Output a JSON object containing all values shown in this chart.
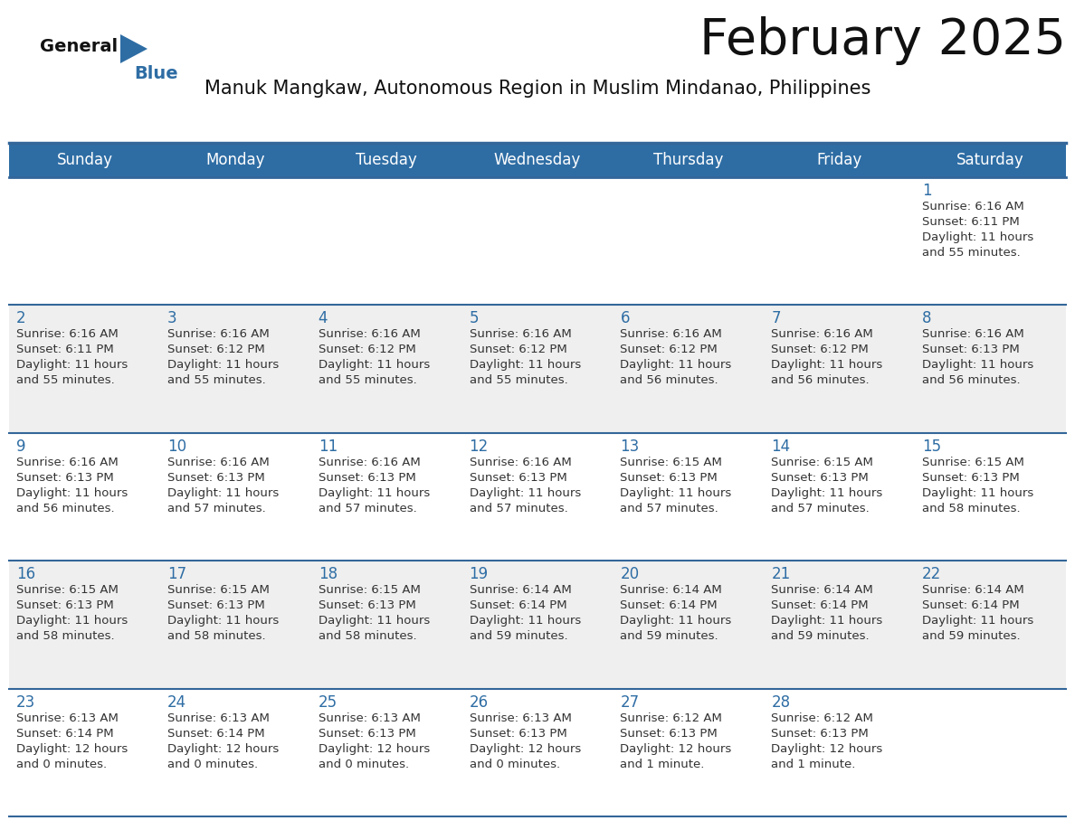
{
  "title": "February 2025",
  "subtitle": "Manuk Mangkaw, Autonomous Region in Muslim Mindanao, Philippines",
  "days_of_week": [
    "Sunday",
    "Monday",
    "Tuesday",
    "Wednesday",
    "Thursday",
    "Friday",
    "Saturday"
  ],
  "header_bg": "#2E6DA4",
  "header_text_color": "#FFFFFF",
  "cell_bg_white": "#FFFFFF",
  "cell_bg_gray": "#EFEFEF",
  "border_color": "#336699",
  "title_color": "#111111",
  "subtitle_color": "#111111",
  "day_num_color": "#2E6DA4",
  "info_color": "#333333",
  "logo_black": "#111111",
  "logo_blue": "#2E6DA4",
  "calendar": [
    [
      null,
      null,
      null,
      null,
      null,
      null,
      1
    ],
    [
      2,
      3,
      4,
      5,
      6,
      7,
      8
    ],
    [
      9,
      10,
      11,
      12,
      13,
      14,
      15
    ],
    [
      16,
      17,
      18,
      19,
      20,
      21,
      22
    ],
    [
      23,
      24,
      25,
      26,
      27,
      28,
      null
    ]
  ],
  "sun_data": {
    "1": {
      "sunrise": "6:16 AM",
      "sunset": "6:11 PM",
      "dl1": "Daylight: 11 hours",
      "dl2": "and 55 minutes."
    },
    "2": {
      "sunrise": "6:16 AM",
      "sunset": "6:11 PM",
      "dl1": "Daylight: 11 hours",
      "dl2": "and 55 minutes."
    },
    "3": {
      "sunrise": "6:16 AM",
      "sunset": "6:12 PM",
      "dl1": "Daylight: 11 hours",
      "dl2": "and 55 minutes."
    },
    "4": {
      "sunrise": "6:16 AM",
      "sunset": "6:12 PM",
      "dl1": "Daylight: 11 hours",
      "dl2": "and 55 minutes."
    },
    "5": {
      "sunrise": "6:16 AM",
      "sunset": "6:12 PM",
      "dl1": "Daylight: 11 hours",
      "dl2": "and 55 minutes."
    },
    "6": {
      "sunrise": "6:16 AM",
      "sunset": "6:12 PM",
      "dl1": "Daylight: 11 hours",
      "dl2": "and 56 minutes."
    },
    "7": {
      "sunrise": "6:16 AM",
      "sunset": "6:12 PM",
      "dl1": "Daylight: 11 hours",
      "dl2": "and 56 minutes."
    },
    "8": {
      "sunrise": "6:16 AM",
      "sunset": "6:13 PM",
      "dl1": "Daylight: 11 hours",
      "dl2": "and 56 minutes."
    },
    "9": {
      "sunrise": "6:16 AM",
      "sunset": "6:13 PM",
      "dl1": "Daylight: 11 hours",
      "dl2": "and 56 minutes."
    },
    "10": {
      "sunrise": "6:16 AM",
      "sunset": "6:13 PM",
      "dl1": "Daylight: 11 hours",
      "dl2": "and 57 minutes."
    },
    "11": {
      "sunrise": "6:16 AM",
      "sunset": "6:13 PM",
      "dl1": "Daylight: 11 hours",
      "dl2": "and 57 minutes."
    },
    "12": {
      "sunrise": "6:16 AM",
      "sunset": "6:13 PM",
      "dl1": "Daylight: 11 hours",
      "dl2": "and 57 minutes."
    },
    "13": {
      "sunrise": "6:15 AM",
      "sunset": "6:13 PM",
      "dl1": "Daylight: 11 hours",
      "dl2": "and 57 minutes."
    },
    "14": {
      "sunrise": "6:15 AM",
      "sunset": "6:13 PM",
      "dl1": "Daylight: 11 hours",
      "dl2": "and 57 minutes."
    },
    "15": {
      "sunrise": "6:15 AM",
      "sunset": "6:13 PM",
      "dl1": "Daylight: 11 hours",
      "dl2": "and 58 minutes."
    },
    "16": {
      "sunrise": "6:15 AM",
      "sunset": "6:13 PM",
      "dl1": "Daylight: 11 hours",
      "dl2": "and 58 minutes."
    },
    "17": {
      "sunrise": "6:15 AM",
      "sunset": "6:13 PM",
      "dl1": "Daylight: 11 hours",
      "dl2": "and 58 minutes."
    },
    "18": {
      "sunrise": "6:15 AM",
      "sunset": "6:13 PM",
      "dl1": "Daylight: 11 hours",
      "dl2": "and 58 minutes."
    },
    "19": {
      "sunrise": "6:14 AM",
      "sunset": "6:14 PM",
      "dl1": "Daylight: 11 hours",
      "dl2": "and 59 minutes."
    },
    "20": {
      "sunrise": "6:14 AM",
      "sunset": "6:14 PM",
      "dl1": "Daylight: 11 hours",
      "dl2": "and 59 minutes."
    },
    "21": {
      "sunrise": "6:14 AM",
      "sunset": "6:14 PM",
      "dl1": "Daylight: 11 hours",
      "dl2": "and 59 minutes."
    },
    "22": {
      "sunrise": "6:14 AM",
      "sunset": "6:14 PM",
      "dl1": "Daylight: 11 hours",
      "dl2": "and 59 minutes."
    },
    "23": {
      "sunrise": "6:13 AM",
      "sunset": "6:14 PM",
      "dl1": "Daylight: 12 hours",
      "dl2": "and 0 minutes."
    },
    "24": {
      "sunrise": "6:13 AM",
      "sunset": "6:14 PM",
      "dl1": "Daylight: 12 hours",
      "dl2": "and 0 minutes."
    },
    "25": {
      "sunrise": "6:13 AM",
      "sunset": "6:13 PM",
      "dl1": "Daylight: 12 hours",
      "dl2": "and 0 minutes."
    },
    "26": {
      "sunrise": "6:13 AM",
      "sunset": "6:13 PM",
      "dl1": "Daylight: 12 hours",
      "dl2": "and 0 minutes."
    },
    "27": {
      "sunrise": "6:12 AM",
      "sunset": "6:13 PM",
      "dl1": "Daylight: 12 hours",
      "dl2": "and 1 minute."
    },
    "28": {
      "sunrise": "6:12 AM",
      "sunset": "6:13 PM",
      "dl1": "Daylight: 12 hours",
      "dl2": "and 1 minute."
    }
  }
}
